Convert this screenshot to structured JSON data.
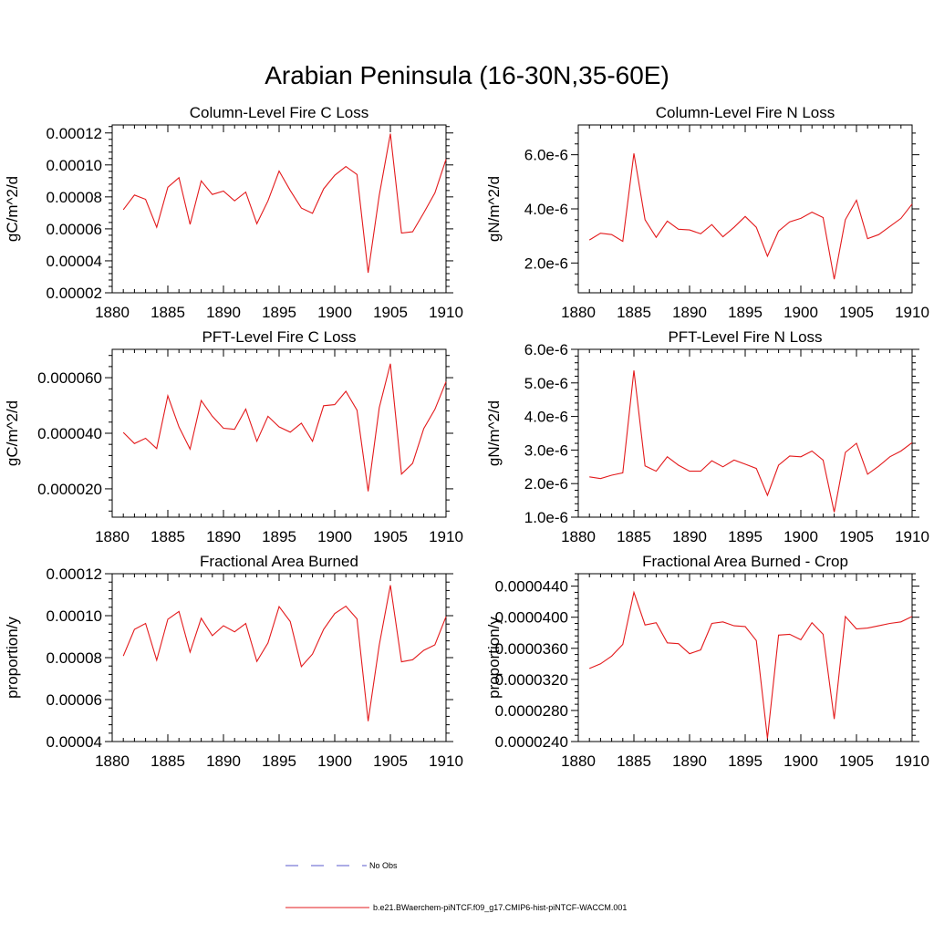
{
  "figure": {
    "title": "Arabian Peninsula (16-30N,35-60E)",
    "legend": [
      {
        "label": "No Obs",
        "color": "#5a5acd",
        "dash": "dashed"
      },
      {
        "label": "b.e21.BWaerchem-piNTCF.f09_g17.CMIP6-hist-piNTCF-WACCM.001",
        "color": "#e31a1c",
        "dash": "solid"
      }
    ]
  },
  "chart_data": [
    {
      "type": "line",
      "title": "Column-Level Fire C Loss",
      "ylabel": "gC/m^2/d",
      "xlim": [
        1880,
        1910
      ],
      "ylim": [
        2e-05,
        0.000125
      ],
      "xticks": [
        1880,
        1885,
        1890,
        1895,
        1900,
        1905,
        1910
      ],
      "xticklabels": [
        "1880",
        "1885",
        "1890",
        "1895",
        "1900",
        "1905",
        "1910"
      ],
      "yticks": [
        2e-05,
        4e-05,
        6e-05,
        8e-05,
        0.0001,
        0.00012
      ],
      "yticklabels": [
        "0.00002",
        "0.00004",
        "0.00006",
        "0.00008",
        "0.00010",
        "0.00012"
      ],
      "series": [
        {
          "color": "#e31a1c",
          "x": [
            1881,
            1882,
            1883,
            1884,
            1885,
            1886,
            1887,
            1888,
            1889,
            1890,
            1891,
            1892,
            1893,
            1894,
            1895,
            1896,
            1897,
            1898,
            1899,
            1900,
            1901,
            1902,
            1903,
            1904,
            1905,
            1906,
            1907,
            1908,
            1909,
            1910
          ],
          "y": [
            7.2e-05,
            8.12e-05,
            7.85e-05,
            6.1e-05,
            8.6e-05,
            9.2e-05,
            6.28e-05,
            9e-05,
            8.15e-05,
            8.36e-05,
            7.75e-05,
            8.3e-05,
            6.32e-05,
            7.75e-05,
            9.62e-05,
            8.4e-05,
            7.3e-05,
            6.97e-05,
            8.5e-05,
            9.35e-05,
            9.9e-05,
            9.4e-05,
            3.25e-05,
            8.1e-05,
            0.0001195,
            5.74e-05,
            5.82e-05,
            7e-05,
            8.25e-05,
            0.0001035
          ]
        }
      ]
    },
    {
      "type": "line",
      "title": "Column-Level Fire N Loss",
      "ylabel": "gN/m^2/d",
      "xlim": [
        1880,
        1910
      ],
      "ylim": [
        9e-07,
        7.1e-06
      ],
      "xticks": [
        1880,
        1885,
        1890,
        1895,
        1900,
        1905,
        1910
      ],
      "xticklabels": [
        "1880",
        "1885",
        "1890",
        "1895",
        "1900",
        "1905",
        "1910"
      ],
      "yticks": [
        2e-06,
        4e-06,
        6e-06
      ],
      "yticklabels": [
        "2.0e-6",
        "4.0e-6",
        "6.0e-6"
      ],
      "series": [
        {
          "color": "#e31a1c",
          "x": [
            1881,
            1882,
            1883,
            1884,
            1885,
            1886,
            1887,
            1888,
            1889,
            1890,
            1891,
            1892,
            1893,
            1894,
            1895,
            1896,
            1897,
            1898,
            1899,
            1900,
            1901,
            1902,
            1903,
            1904,
            1905,
            1906,
            1907,
            1908,
            1909,
            1910
          ],
          "y": [
            2.85e-06,
            3.1e-06,
            3.05e-06,
            2.8e-06,
            6.05e-06,
            3.6e-06,
            2.95e-06,
            3.55e-06,
            3.25e-06,
            3.22e-06,
            3.08e-06,
            3.42e-06,
            2.97e-06,
            3.32e-06,
            3.72e-06,
            3.32e-06,
            2.25e-06,
            3.18e-06,
            3.52e-06,
            3.65e-06,
            3.88e-06,
            3.68e-06,
            1.4e-06,
            3.6e-06,
            4.32e-06,
            2.9e-06,
            3.05e-06,
            3.35e-06,
            3.65e-06,
            4.18e-06
          ]
        }
      ]
    },
    {
      "type": "line",
      "title": "PFT-Level Fire C Loss",
      "ylabel": "gC/m^2/d",
      "xlim": [
        1880,
        1910
      ],
      "ylim": [
        9.8e-06,
        7.02e-05
      ],
      "xticks": [
        1880,
        1885,
        1890,
        1895,
        1900,
        1905,
        1910
      ],
      "xticklabels": [
        "1880",
        "1885",
        "1890",
        "1895",
        "1900",
        "1905",
        "1910"
      ],
      "yticks": [
        2e-05,
        4e-05,
        6e-05
      ],
      "yticklabels": [
        "0.000020",
        "0.000040",
        "0.000060"
      ],
      "series": [
        {
          "color": "#e31a1c",
          "x": [
            1881,
            1882,
            1883,
            1884,
            1885,
            1886,
            1887,
            1888,
            1889,
            1890,
            1891,
            1892,
            1893,
            1894,
            1895,
            1896,
            1897,
            1898,
            1899,
            1900,
            1901,
            1902,
            1903,
            1904,
            1905,
            1906,
            1907,
            1908,
            1909,
            1910
          ],
          "y": [
            4.03e-05,
            3.63e-05,
            3.82e-05,
            3.45e-05,
            5.35e-05,
            4.23e-05,
            3.43e-05,
            5.18e-05,
            4.61e-05,
            4.18e-05,
            4.14e-05,
            4.87e-05,
            3.71e-05,
            4.61e-05,
            4.23e-05,
            4.04e-05,
            4.36e-05,
            3.71e-05,
            4.99e-05,
            5.03e-05,
            5.51e-05,
            4.83e-05,
            1.91e-05,
            4.92e-05,
            6.5e-05,
            2.53e-05,
            2.92e-05,
            4.17e-05,
            4.86e-05,
            5.85e-05
          ]
        }
      ]
    },
    {
      "type": "line",
      "title": "PFT-Level Fire N Loss",
      "ylabel": "gN/m^2/d",
      "xlim": [
        1880,
        1910
      ],
      "ylim": [
        1e-06,
        6e-06
      ],
      "xticks": [
        1880,
        1885,
        1890,
        1895,
        1900,
        1905,
        1910
      ],
      "xticklabels": [
        "1880",
        "1885",
        "1890",
        "1895",
        "1900",
        "1905",
        "1910"
      ],
      "yticks": [
        1e-06,
        2e-06,
        3e-06,
        4e-06,
        5e-06,
        6e-06
      ],
      "yticklabels": [
        "1.0e-6",
        "2.0e-6",
        "3.0e-6",
        "4.0e-6",
        "5.0e-6",
        "6.0e-6"
      ],
      "series": [
        {
          "color": "#e31a1c",
          "x": [
            1881,
            1882,
            1883,
            1884,
            1885,
            1886,
            1887,
            1888,
            1889,
            1890,
            1891,
            1892,
            1893,
            1894,
            1895,
            1896,
            1897,
            1898,
            1899,
            1900,
            1901,
            1902,
            1903,
            1904,
            1905,
            1906,
            1907,
            1908,
            1909,
            1910
          ],
          "y": [
            2.2e-06,
            2.15e-06,
            2.25e-06,
            2.32e-06,
            5.37e-06,
            2.53e-06,
            2.37e-06,
            2.8e-06,
            2.55e-06,
            2.37e-06,
            2.37e-06,
            2.68e-06,
            2.5e-06,
            2.7e-06,
            2.58e-06,
            2.45e-06,
            1.65e-06,
            2.55e-06,
            2.82e-06,
            2.8e-06,
            2.97e-06,
            2.7e-06,
            1.15e-06,
            2.93e-06,
            3.2e-06,
            2.28e-06,
            2.52e-06,
            2.8e-06,
            2.97e-06,
            3.22e-06
          ]
        }
      ]
    },
    {
      "type": "line",
      "title": "Fractional Area Burned",
      "ylabel": "proportion/y",
      "xlim": [
        1880,
        1910
      ],
      "ylim": [
        4e-05,
        0.00012
      ],
      "xticks": [
        1880,
        1885,
        1890,
        1895,
        1900,
        1905,
        1910
      ],
      "xticklabels": [
        "1880",
        "1885",
        "1890",
        "1895",
        "1900",
        "1905",
        "1910"
      ],
      "yticks": [
        4e-05,
        6e-05,
        8e-05,
        0.0001,
        0.00012
      ],
      "yticklabels": [
        "0.00004",
        "0.00006",
        "0.00008",
        "0.00010",
        "0.00012"
      ],
      "series": [
        {
          "color": "#e31a1c",
          "x": [
            1881,
            1882,
            1883,
            1884,
            1885,
            1886,
            1887,
            1888,
            1889,
            1890,
            1891,
            1892,
            1893,
            1894,
            1895,
            1896,
            1897,
            1898,
            1899,
            1900,
            1901,
            1902,
            1903,
            1904,
            1905,
            1906,
            1907,
            1908,
            1909,
            1910
          ],
          "y": [
            8.08e-05,
            9.35e-05,
            9.63e-05,
            7.88e-05,
            9.83e-05,
            0.000102,
            8.26e-05,
            9.88e-05,
            9.05e-05,
            9.52e-05,
            9.23e-05,
            9.63e-05,
            7.82e-05,
            8.7e-05,
            0.0001043,
            9.72e-05,
            7.57e-05,
            8.17e-05,
            9.35e-05,
            0.000101,
            0.0001045,
            9.85e-05,
            4.97e-05,
            8.6e-05,
            0.0001145,
            7.8e-05,
            7.9e-05,
            8.35e-05,
            8.61e-05,
            9.95e-05
          ]
        }
      ]
    },
    {
      "type": "line",
      "title": "Fractional Area Burned - Crop",
      "ylabel": "proportion/y",
      "xlim": [
        1880,
        1910
      ],
      "ylim": [
        2.4e-05,
        4.56e-05
      ],
      "xticks": [
        1880,
        1885,
        1890,
        1895,
        1900,
        1905,
        1910
      ],
      "xticklabels": [
        "1880",
        "1885",
        "1890",
        "1895",
        "1900",
        "1905",
        "1910"
      ],
      "yticks": [
        2.4e-05,
        2.8e-05,
        3.2e-05,
        3.6e-05,
        4e-05,
        4.4e-05
      ],
      "yticklabels": [
        "0.0000240",
        "0.0000280",
        "0.0000320",
        "0.0000360",
        "0.0000400",
        "0.0000440"
      ],
      "series": [
        {
          "color": "#e31a1c",
          "x": [
            1881,
            1882,
            1883,
            1884,
            1885,
            1886,
            1887,
            1888,
            1889,
            1890,
            1891,
            1892,
            1893,
            1894,
            1895,
            1896,
            1897,
            1898,
            1899,
            1900,
            1901,
            1902,
            1903,
            1904,
            1905,
            1906,
            1907,
            1908,
            1909,
            1910
          ],
          "y": [
            3.34e-05,
            3.4e-05,
            3.5e-05,
            3.65e-05,
            4.32e-05,
            3.9e-05,
            3.93e-05,
            3.67e-05,
            3.66e-05,
            3.53e-05,
            3.58e-05,
            3.92e-05,
            3.94e-05,
            3.89e-05,
            3.88e-05,
            3.7e-05,
            2.44e-05,
            3.77e-05,
            3.78e-05,
            3.71e-05,
            3.93e-05,
            3.78e-05,
            2.69e-05,
            4.01e-05,
            3.85e-05,
            3.86e-05,
            3.89e-05,
            3.92e-05,
            3.94e-05,
            4.01e-05
          ]
        }
      ]
    }
  ]
}
